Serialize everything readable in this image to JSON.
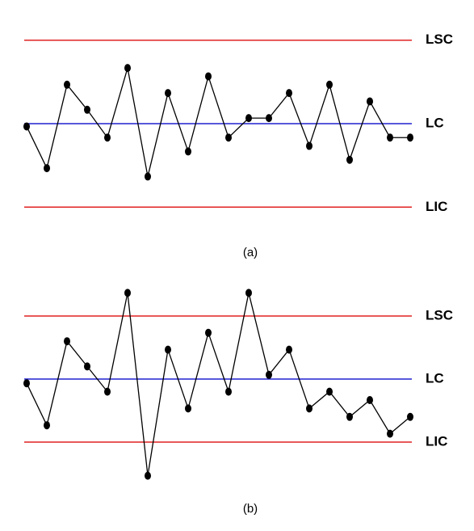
{
  "chart_data": [
    {
      "type": "line",
      "caption": "(a)",
      "ylim": [
        -3.5,
        3.5
      ],
      "categories": [
        null,
        null,
        null,
        null,
        null,
        null,
        null,
        null,
        null,
        null,
        null,
        null,
        null,
        null,
        null,
        null,
        null,
        null,
        null,
        null
      ],
      "reference_lines": [
        {
          "label": "LSC",
          "value": 3,
          "color": "#e02020"
        },
        {
          "label": "LC",
          "value": 0,
          "color": "#2020d0"
        },
        {
          "label": "LIC",
          "value": -3,
          "color": "#e02020"
        }
      ],
      "series": [
        {
          "color": "#000000",
          "values": [
            -0.1,
            -1.6,
            1.4,
            0.5,
            -0.5,
            2.0,
            -1.9,
            1.1,
            -1.0,
            1.7,
            -0.5,
            0.2,
            0.2,
            1.1,
            -0.8,
            1.4,
            -1.3,
            0.8,
            -0.5,
            -0.5
          ]
        }
      ]
    },
    {
      "type": "line",
      "caption": "(b)",
      "ylim": [
        -5,
        5
      ],
      "categories": [
        null,
        null,
        null,
        null,
        null,
        null,
        null,
        null,
        null,
        null,
        null,
        null,
        null,
        null,
        null,
        null,
        null,
        null,
        null,
        null
      ],
      "reference_lines": [
        {
          "label": "LSC",
          "value": 3,
          "color": "#e02020"
        },
        {
          "label": "LC",
          "value": 0,
          "color": "#2020d0"
        },
        {
          "label": "LIC",
          "value": -3,
          "color": "#e02020"
        }
      ],
      "series": [
        {
          "color": "#000000",
          "values": [
            -0.2,
            -2.2,
            1.8,
            0.6,
            -0.6,
            4.1,
            -4.6,
            1.4,
            -1.4,
            2.2,
            -0.6,
            4.1,
            0.2,
            1.4,
            -1.4,
            -0.6,
            -1.8,
            -1.0,
            -2.6,
            -1.8
          ]
        }
      ]
    }
  ]
}
